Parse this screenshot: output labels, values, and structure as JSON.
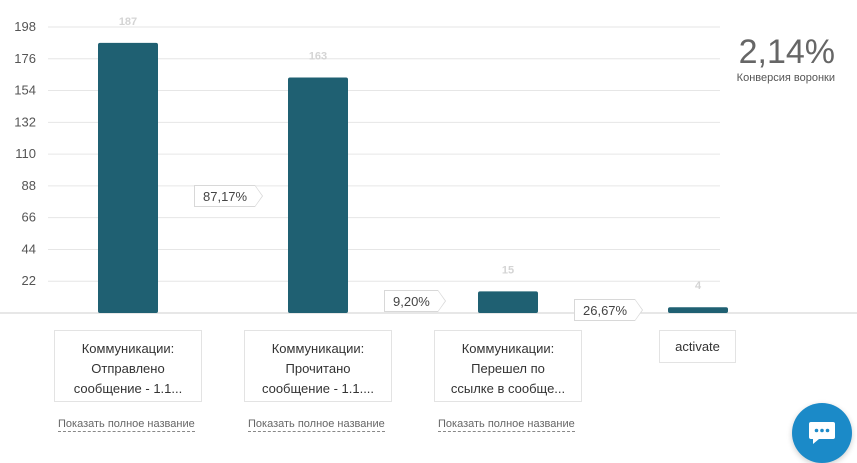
{
  "chart_data": {
    "type": "bar",
    "categories": [
      "Коммуникации: Отправлено сообщение - 1.1...",
      "Коммуникации: Прочитано сообщение - 1.1....",
      "Коммуникации: Перешел по ссылке в сообще...",
      "activate"
    ],
    "values": [
      187,
      163,
      15,
      4
    ],
    "value_labels": [
      "187",
      "163",
      "15",
      "4"
    ],
    "yticks": [
      "22",
      "44",
      "66",
      "88",
      "110",
      "132",
      "154",
      "176",
      "198"
    ],
    "ylim": [
      0,
      198
    ],
    "grid": true,
    "bar_color": "#1f6072",
    "step_conversions": [
      "87,17%",
      "9,20%",
      "26,67%"
    ]
  },
  "steps": [
    {
      "lines": [
        "Коммуникации:",
        "Отправлено",
        "сообщение - 1.1..."
      ],
      "link": "Показать полное название"
    },
    {
      "lines": [
        "Коммуникации:",
        "Прочитано",
        "сообщение - 1.1...."
      ],
      "link": "Показать полное название"
    },
    {
      "lines": [
        "Коммуникации:",
        "Перешел по",
        "ссылке в сообще..."
      ],
      "link": "Показать полное название"
    },
    {
      "lines": [
        "activate"
      ],
      "link": ""
    }
  ],
  "funnel": {
    "conversion_value": "2,14%",
    "conversion_label": "Конверсия воронки"
  },
  "chat": {
    "icon": "chat-bubble-icon"
  }
}
